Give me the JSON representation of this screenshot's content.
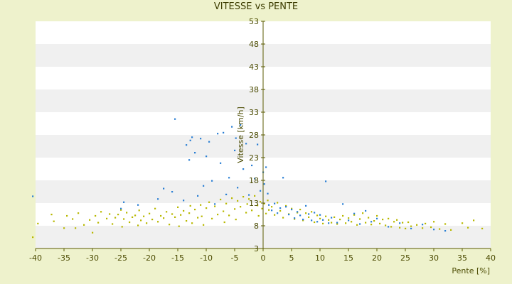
{
  "chart_data": {
    "type": "scatter",
    "title": "VITESSE vs PENTE",
    "xlabel": "Pente [%]",
    "ylabel": "Vitesse [km/h]",
    "xlim": [
      -40,
      40
    ],
    "ylim": [
      3,
      53
    ],
    "x_ticks": [
      -40,
      -35,
      -30,
      -25,
      -20,
      -15,
      -10,
      -5,
      0,
      5,
      10,
      15,
      20,
      25,
      30,
      35,
      40
    ],
    "y_ticks": [
      3,
      8,
      13,
      18,
      23,
      28,
      33,
      38,
      43,
      48,
      53
    ],
    "grid": "horizontal bands",
    "colors": {
      "plot_band_light": "#ffffff",
      "plot_band_dark": "#f0f0f0",
      "page_background": "#eef2cc",
      "axis": "#5a5a00",
      "series_olive": "#b8b800",
      "series_blue": "#2b7fd4"
    },
    "series": [
      {
        "color_key": "series_olive",
        "points": [
          [
            -40.5,
            5.5
          ],
          [
            -39.6,
            8.5
          ],
          [
            -37.2,
            10.5
          ],
          [
            -36.8,
            9
          ],
          [
            -35,
            7.5
          ],
          [
            -34.5,
            10.2
          ],
          [
            -33.5,
            9.5
          ],
          [
            -33,
            7.5
          ],
          [
            -32.5,
            10.8
          ],
          [
            -31.5,
            8.2
          ],
          [
            -30.5,
            9.3
          ],
          [
            -30,
            6.5
          ],
          [
            -29.5,
            10.2
          ],
          [
            -29,
            8.7
          ],
          [
            -28.5,
            11.1
          ],
          [
            -27.5,
            9.6
          ],
          [
            -27,
            10.6
          ],
          [
            -26.5,
            8.4
          ],
          [
            -26,
            9.8
          ],
          [
            -25.5,
            10.5
          ],
          [
            -25,
            11.5
          ],
          [
            -24.8,
            7.8
          ],
          [
            -24.5,
            9.5
          ],
          [
            -24,
            10.9
          ],
          [
            -23.5,
            8.8
          ],
          [
            -23,
            9.9
          ],
          [
            -22.5,
            10.3
          ],
          [
            -22,
            8.1
          ],
          [
            -21.8,
            11.4
          ],
          [
            -21.5,
            9.2
          ],
          [
            -21,
            10.1
          ],
          [
            -20.5,
            8.6
          ],
          [
            -20,
            10.7
          ],
          [
            -19.5,
            9.4
          ],
          [
            -19,
            11.8
          ],
          [
            -18.5,
            8.9
          ],
          [
            -18,
            10.2
          ],
          [
            -17.5,
            9.7
          ],
          [
            -17,
            11.1
          ],
          [
            -16.5,
            8.3
          ],
          [
            -16,
            10.6
          ],
          [
            -15.5,
            9.9
          ],
          [
            -15,
            12.1
          ],
          [
            -14.8,
            7.9
          ],
          [
            -14.5,
            10.4
          ],
          [
            -14,
            11.3
          ],
          [
            -13.5,
            9.1
          ],
          [
            -13,
            10.8
          ],
          [
            -12.8,
            12.4
          ],
          [
            -12.5,
            8.6
          ],
          [
            -12,
            11.6
          ],
          [
            -11.5,
            9.8
          ],
          [
            -11,
            12.6
          ],
          [
            -10.8,
            10.1
          ],
          [
            -10.5,
            8.2
          ],
          [
            -10,
            11.9
          ],
          [
            -9.5,
            13.2
          ],
          [
            -9,
            9.6
          ],
          [
            -8.5,
            12.3
          ],
          [
            -8,
            10.5
          ],
          [
            -7.5,
            13.8
          ],
          [
            -7,
            11.2
          ],
          [
            -6.8,
            8.8
          ],
          [
            -6.5,
            12.9
          ],
          [
            -6,
            10.3
          ],
          [
            -5.5,
            14.1
          ],
          [
            -5,
            11.7
          ],
          [
            -4.8,
            9.4
          ],
          [
            -4.5,
            13.5
          ],
          [
            -4,
            12.2
          ],
          [
            -3.5,
            14.4
          ],
          [
            -3,
            10.9
          ],
          [
            -2.8,
            12.8
          ],
          [
            -2.5,
            13.9
          ],
          [
            -2,
            11.4
          ],
          [
            -1.5,
            14.6
          ],
          [
            -1,
            12.5
          ],
          [
            -0.8,
            10.2
          ],
          [
            -0.5,
            13.3
          ],
          [
            -0.2,
            11.8
          ],
          [
            0.2,
            12.9
          ],
          [
            0.5,
            10.7
          ],
          [
            0.8,
            13.6
          ],
          [
            1,
            11.5
          ],
          [
            1.5,
            12.2
          ],
          [
            2,
            10.4
          ],
          [
            2.5,
            13.1
          ],
          [
            3,
            11.3
          ],
          [
            3.5,
            9.8
          ],
          [
            4,
            12.4
          ],
          [
            4.5,
            10.6
          ],
          [
            5,
            11.8
          ],
          [
            5.5,
            9.5
          ],
          [
            6,
            10.9
          ],
          [
            6.5,
            11.6
          ],
          [
            7,
            9.2
          ],
          [
            7.5,
            10.8
          ],
          [
            8,
            9.9
          ],
          [
            8.5,
            11.1
          ],
          [
            9,
            8.8
          ],
          [
            9.5,
            10.3
          ],
          [
            10,
            9.6
          ],
          [
            10.5,
            8.5
          ],
          [
            11,
            10.1
          ],
          [
            11.5,
            9.3
          ],
          [
            12,
            8.7
          ],
          [
            12.5,
            9.9
          ],
          [
            13,
            8.4
          ],
          [
            13.5,
            9.4
          ],
          [
            14,
            10.2
          ],
          [
            14.5,
            8.6
          ],
          [
            15,
            9.7
          ],
          [
            15.5,
            8.9
          ],
          [
            16,
            10.4
          ],
          [
            16.5,
            8.2
          ],
          [
            17,
            9.5
          ],
          [
            17.5,
            10.8
          ],
          [
            18,
            8.7
          ],
          [
            18.5,
            9.8
          ],
          [
            19,
            8.3
          ],
          [
            19.5,
            9.1
          ],
          [
            20,
            10.2
          ],
          [
            20.5,
            8.5
          ],
          [
            21,
            9.4
          ],
          [
            21.5,
            8.1
          ],
          [
            22,
            9.6
          ],
          [
            22.5,
            7.8
          ],
          [
            23,
            8.9
          ],
          [
            23.5,
            9.3
          ],
          [
            24,
            7.6
          ],
          [
            24.5,
            8.7
          ],
          [
            25,
            7.4
          ],
          [
            25.5,
            8.8
          ],
          [
            26,
            7.9
          ],
          [
            27,
            8.2
          ],
          [
            28,
            7.5
          ],
          [
            28.5,
            8.5
          ],
          [
            29.5,
            7.7
          ],
          [
            30,
            8.9
          ],
          [
            31,
            7.3
          ],
          [
            32,
            8.4
          ],
          [
            33,
            7.1
          ],
          [
            35,
            8.6
          ],
          [
            36,
            7.6
          ],
          [
            37,
            9.2
          ],
          [
            38.5,
            7.4
          ]
        ]
      },
      {
        "color_key": "series_blue",
        "points": [
          [
            -40.5,
            14.5
          ],
          [
            -25,
            11.8
          ],
          [
            -24.5,
            13.2
          ],
          [
            -22,
            12.6
          ],
          [
            -18.5,
            13.9
          ],
          [
            -17.5,
            16.2
          ],
          [
            -16,
            15.5
          ],
          [
            -15.5,
            31.5
          ],
          [
            -14,
            13.6
          ],
          [
            -13.5,
            25.8
          ],
          [
            -13,
            22.5
          ],
          [
            -12.8,
            26.8
          ],
          [
            -12.5,
            27.5
          ],
          [
            -12,
            24.1
          ],
          [
            -11.5,
            14.6
          ],
          [
            -11,
            27.2
          ],
          [
            -10.5,
            16.8
          ],
          [
            -10,
            23.3
          ],
          [
            -9.5,
            26.5
          ],
          [
            -9,
            17.9
          ],
          [
            -8.5,
            12.8
          ],
          [
            -8,
            28.3
          ],
          [
            -7.5,
            21.8
          ],
          [
            -7,
            28.5
          ],
          [
            -6.5,
            14.9
          ],
          [
            -6,
            18.6
          ],
          [
            -5.5,
            29.8
          ],
          [
            -5,
            24.6
          ],
          [
            -4.8,
            27.3
          ],
          [
            -4.5,
            16.4
          ],
          [
            -4,
            30.2
          ],
          [
            -3.5,
            20.5
          ],
          [
            -3,
            26.1
          ],
          [
            -2.5,
            14.8
          ],
          [
            -2,
            21.3
          ],
          [
            -1.5,
            18.4
          ],
          [
            -1,
            25.9
          ],
          [
            -0.5,
            15.7
          ],
          [
            0,
            19.8
          ],
          [
            0.2,
            17.2
          ],
          [
            0.5,
            20.9
          ],
          [
            0.8,
            15.1
          ],
          [
            1,
            12.6
          ],
          [
            1.5,
            11.4
          ],
          [
            2,
            12.9
          ],
          [
            2.5,
            10.8
          ],
          [
            3,
            11.9
          ],
          [
            3.5,
            18.6
          ],
          [
            4,
            12.2
          ],
          [
            4.5,
            10.5
          ],
          [
            5,
            11.6
          ],
          [
            5.5,
            9.7
          ],
          [
            6,
            11.1
          ],
          [
            6.5,
            10.3
          ],
          [
            7,
            9.4
          ],
          [
            7.5,
            12.4
          ],
          [
            8,
            10.6
          ],
          [
            8.5,
            9.2
          ],
          [
            9,
            10.9
          ],
          [
            9.5,
            8.9
          ],
          [
            10,
            10.4
          ],
          [
            10.5,
            9.3
          ],
          [
            11,
            17.8
          ],
          [
            11.5,
            8.6
          ],
          [
            12,
            9.8
          ],
          [
            13,
            8.7
          ],
          [
            14,
            12.8
          ],
          [
            15,
            9.2
          ],
          [
            16,
            10.7
          ],
          [
            17,
            8.4
          ],
          [
            18,
            11.3
          ],
          [
            19,
            8.9
          ],
          [
            20,
            9.6
          ],
          [
            22,
            7.8
          ],
          [
            24,
            8.6
          ],
          [
            26,
            7.4
          ],
          [
            28,
            8.3
          ],
          [
            30,
            7.2
          ],
          [
            32,
            6.9
          ]
        ]
      }
    ]
  }
}
